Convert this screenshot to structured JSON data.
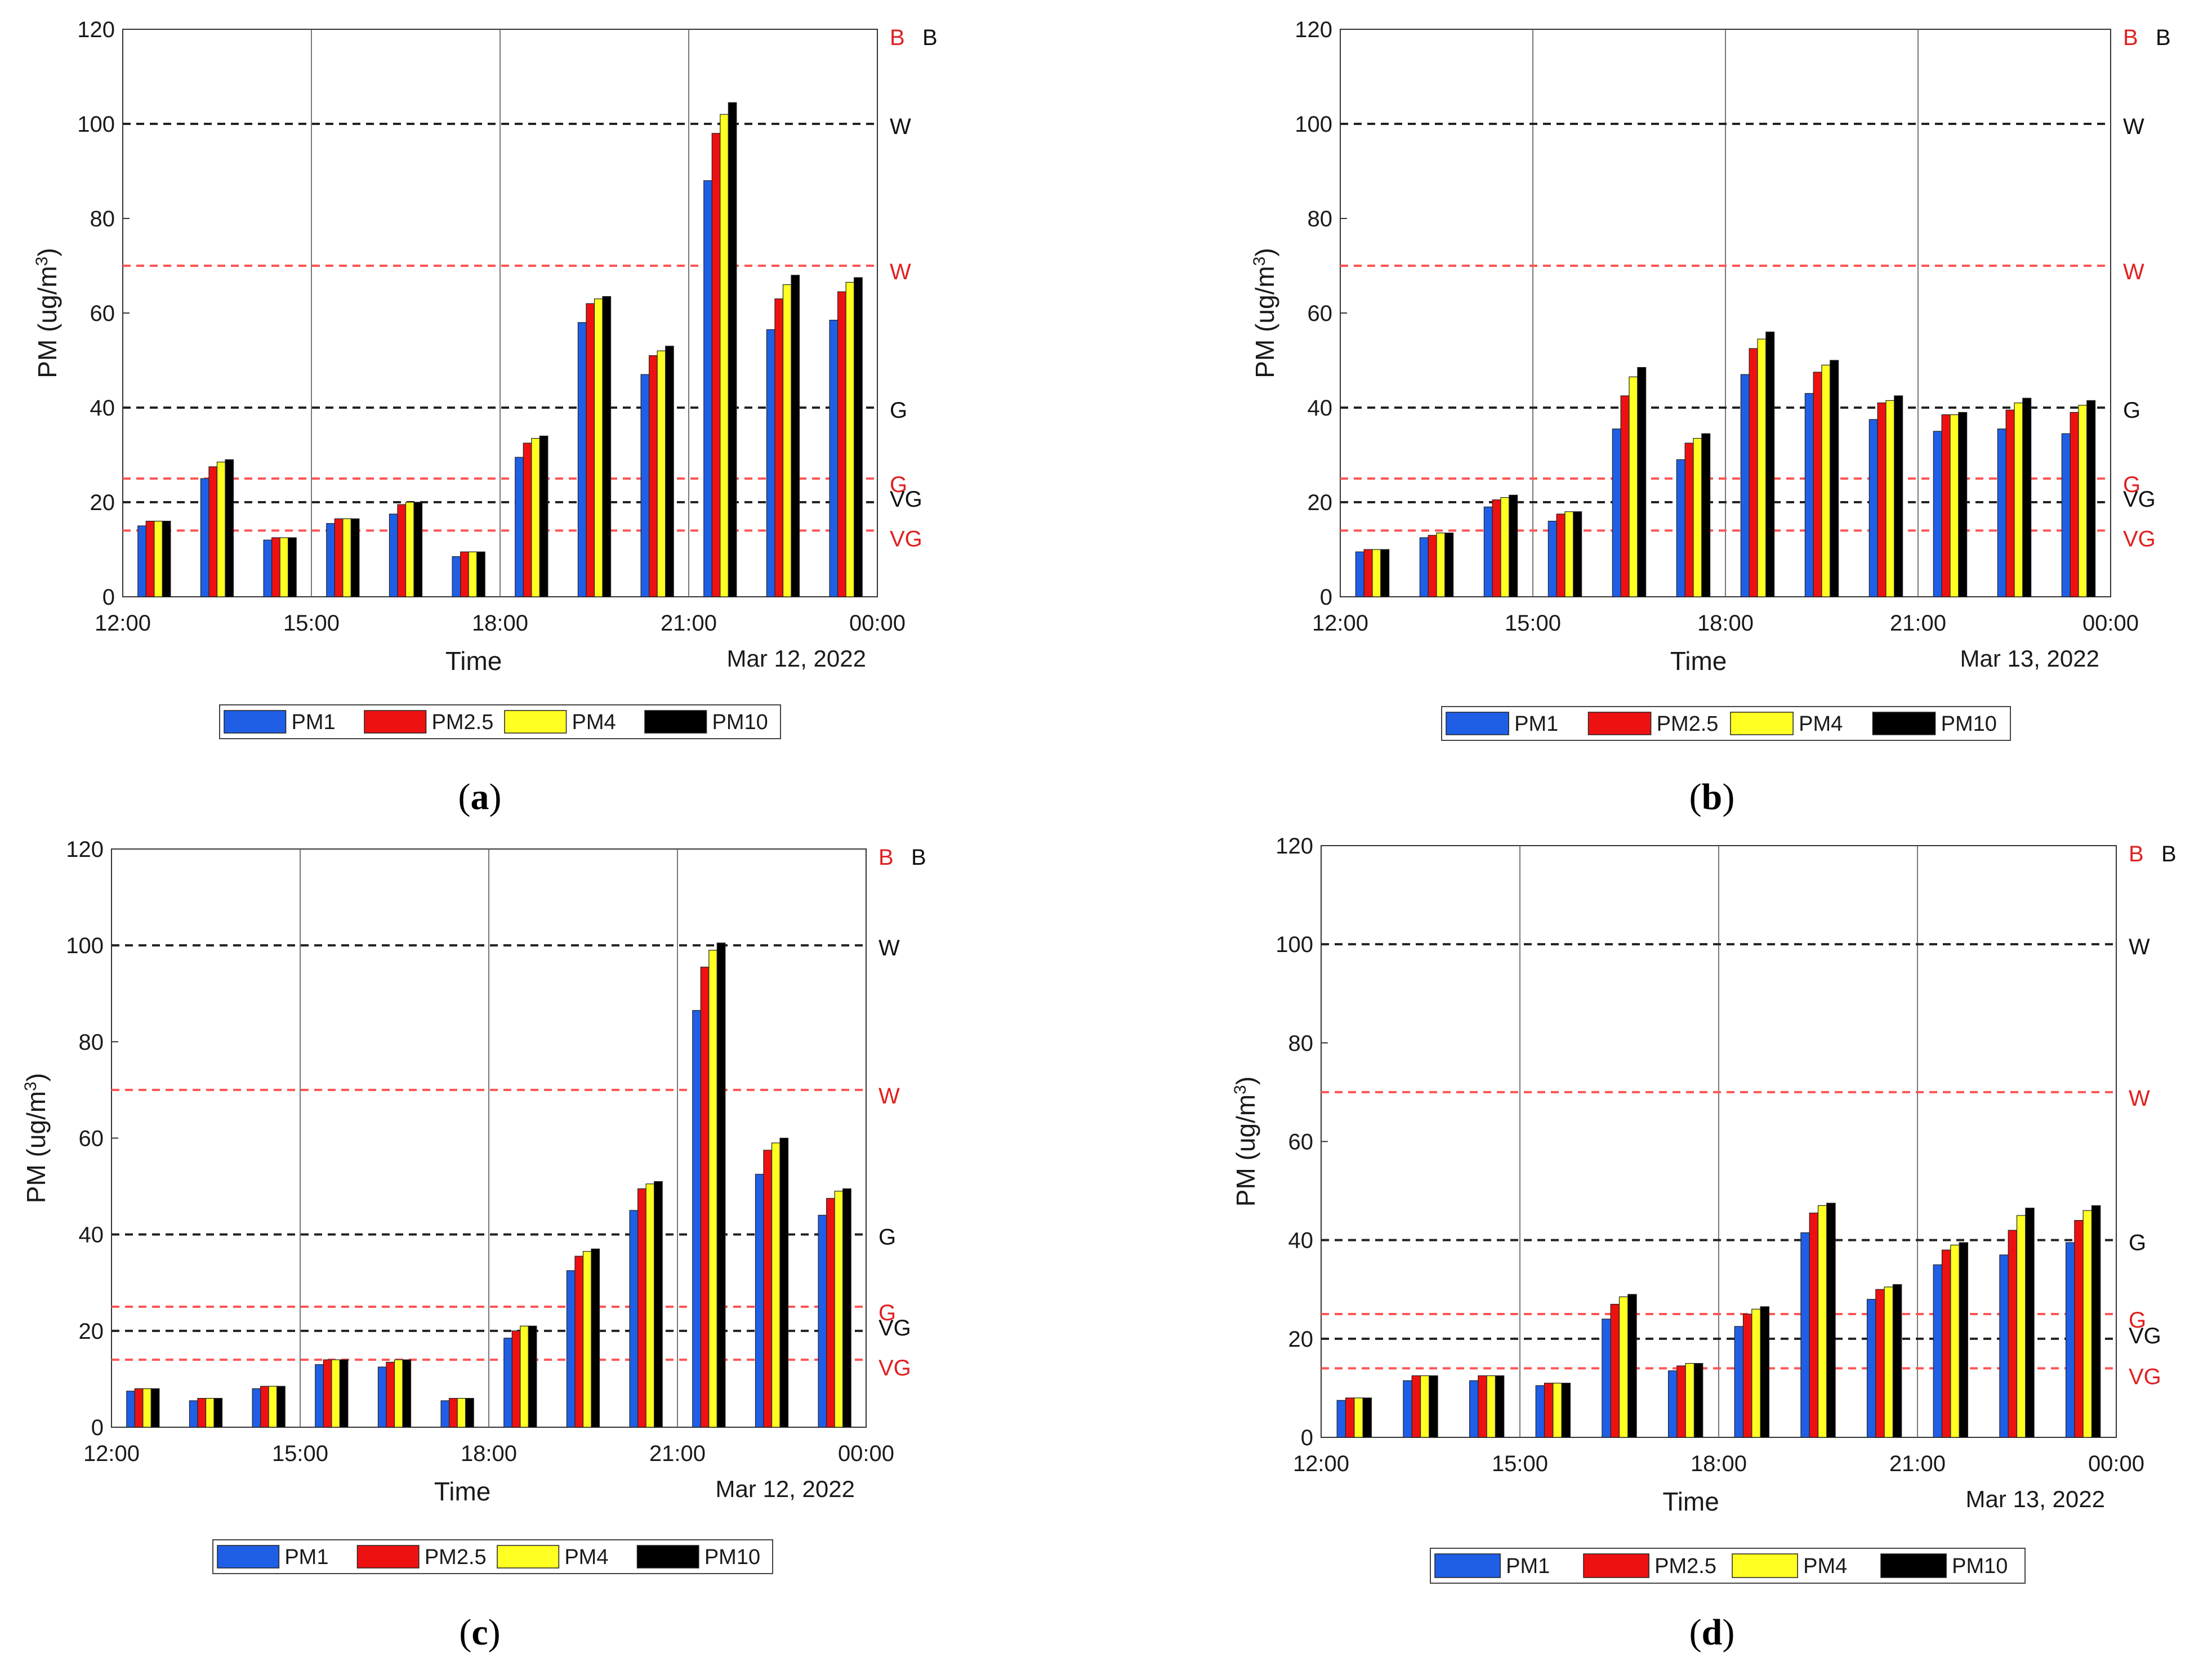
{
  "figure": {
    "captions": [
      "a",
      "b",
      "c",
      "d"
    ]
  },
  "legend_colors": {
    "PM1": "#1f5fe6",
    "PM2.5": "#ee1111",
    "PM4": "#ffff22",
    "PM10": "#000000"
  },
  "level_colors": {
    "red": "#ff5555",
    "black": "#222222"
  },
  "chart_data": [
    {
      "type": "bar",
      "panel": "a",
      "xlabel": "Time",
      "ylabel": "PM (ug/m",
      "ylabel_sup": "3",
      "ylabel_close": ")",
      "ylim": [
        0,
        120
      ],
      "yticks": [
        "0",
        "20",
        "40",
        "60",
        "80",
        "100",
        "120"
      ],
      "xticks": [
        "12:00",
        "15:00",
        "18:00",
        "21:00",
        "00:00"
      ],
      "date_label": "Mar 12, 2022",
      "legend": [
        "PM1",
        "PM2.5",
        "PM4",
        "PM10"
      ],
      "thresholds": [
        {
          "value": 100,
          "color": "black",
          "label": "W"
        },
        {
          "value": 70,
          "color": "red",
          "label": "W"
        },
        {
          "value": 40,
          "color": "black",
          "label": "G"
        },
        {
          "value": 25,
          "color": "red",
          "label": "G"
        },
        {
          "value": 20,
          "color": "black",
          "label": "VG"
        },
        {
          "value": 14,
          "color": "red",
          "label": "VG"
        }
      ],
      "top_labels": [
        {
          "color": "red",
          "label": "B"
        },
        {
          "color": "black",
          "label": "B"
        }
      ],
      "series": [
        {
          "name": "PM1",
          "values": [
            15,
            25,
            12,
            15.5,
            17.5,
            8.5,
            29.5,
            58,
            47,
            88,
            56.5,
            58.5
          ]
        },
        {
          "name": "PM2.5",
          "values": [
            16,
            27.5,
            12.5,
            16.5,
            19.5,
            9.5,
            32.5,
            62,
            51,
            98,
            63,
            64.5
          ]
        },
        {
          "name": "PM4",
          "values": [
            16,
            28.5,
            12.5,
            16.5,
            20,
            9.5,
            33.5,
            63,
            52,
            102,
            66,
            66.5
          ]
        },
        {
          "name": "PM10",
          "values": [
            16,
            29,
            12.5,
            16.5,
            20,
            9.5,
            34,
            63.5,
            53,
            104.5,
            68,
            67.5
          ]
        }
      ]
    },
    {
      "type": "bar",
      "panel": "b",
      "xlabel": "Time",
      "ylabel": "PM (ug/m",
      "ylabel_sup": "3",
      "ylabel_close": ")",
      "ylim": [
        0,
        120
      ],
      "yticks": [
        "0",
        "20",
        "40",
        "60",
        "80",
        "100",
        "120"
      ],
      "xticks": [
        "12:00",
        "15:00",
        "18:00",
        "21:00",
        "00:00"
      ],
      "date_label": "Mar 13, 2022",
      "legend": [
        "PM1",
        "PM2.5",
        "PM4",
        "PM10"
      ],
      "thresholds": [
        {
          "value": 100,
          "color": "black",
          "label": "W"
        },
        {
          "value": 70,
          "color": "red",
          "label": "W"
        },
        {
          "value": 40,
          "color": "black",
          "label": "G"
        },
        {
          "value": 25,
          "color": "red",
          "label": "G"
        },
        {
          "value": 20,
          "color": "black",
          "label": "VG"
        },
        {
          "value": 14,
          "color": "red",
          "label": "VG"
        }
      ],
      "top_labels": [
        {
          "color": "red",
          "label": "B"
        },
        {
          "color": "black",
          "label": "B"
        }
      ],
      "series": [
        {
          "name": "PM1",
          "values": [
            9.5,
            12.5,
            19,
            16,
            35.5,
            29,
            47,
            43,
            37.5,
            35,
            35.5,
            34.5
          ]
        },
        {
          "name": "PM2.5",
          "values": [
            10,
            13,
            20.5,
            17.5,
            42.5,
            32.5,
            52.5,
            47.5,
            41,
            38.5,
            39.5,
            39
          ]
        },
        {
          "name": "PM4",
          "values": [
            10,
            13.5,
            21,
            18,
            46.5,
            33.5,
            54.5,
            49,
            41.5,
            38.5,
            41,
            40.5
          ]
        },
        {
          "name": "PM10",
          "values": [
            10,
            13.5,
            21.5,
            18,
            48.5,
            34.5,
            56,
            50,
            42.5,
            39,
            42,
            41.5
          ]
        }
      ]
    },
    {
      "type": "bar",
      "panel": "c",
      "xlabel": "Time",
      "ylabel": "PM (ug/m",
      "ylabel_sup": "3",
      "ylabel_close": ")",
      "ylim": [
        0,
        120
      ],
      "yticks": [
        "0",
        "20",
        "40",
        "60",
        "80",
        "100",
        "120"
      ],
      "xticks": [
        "12:00",
        "15:00",
        "18:00",
        "21:00",
        "00:00"
      ],
      "date_label": "Mar 12, 2022",
      "legend": [
        "PM1",
        "PM2.5",
        "PM4",
        "PM10"
      ],
      "thresholds": [
        {
          "value": 100,
          "color": "black",
          "label": "W"
        },
        {
          "value": 70,
          "color": "red",
          "label": "W"
        },
        {
          "value": 40,
          "color": "black",
          "label": "G"
        },
        {
          "value": 25,
          "color": "red",
          "label": "G"
        },
        {
          "value": 20,
          "color": "black",
          "label": "VG"
        },
        {
          "value": 14,
          "color": "red",
          "label": "VG"
        }
      ],
      "top_labels": [
        {
          "color": "red",
          "label": "B"
        },
        {
          "color": "black",
          "label": "B"
        }
      ],
      "series": [
        {
          "name": "PM1",
          "values": [
            7.5,
            5.5,
            8,
            13,
            12.5,
            5.5,
            18.5,
            32.5,
            45,
            86.5,
            52.5,
            44
          ]
        },
        {
          "name": "PM2.5",
          "values": [
            8,
            6,
            8.5,
            14,
            13.5,
            6,
            20,
            35.5,
            49.5,
            95.5,
            57.5,
            47.5
          ]
        },
        {
          "name": "PM4",
          "values": [
            8,
            6,
            8.5,
            14,
            14,
            6,
            21,
            36.5,
            50.5,
            99,
            59,
            49
          ]
        },
        {
          "name": "PM10",
          "values": [
            8,
            6,
            8.5,
            14,
            14,
            6,
            21,
            37,
            51,
            100.5,
            60,
            49.5
          ]
        }
      ]
    },
    {
      "type": "bar",
      "panel": "d",
      "xlabel": "Time",
      "ylabel": "PM (ug/m",
      "ylabel_sup": "3",
      "ylabel_close": ")",
      "ylim": [
        0,
        120
      ],
      "yticks": [
        "0",
        "20",
        "40",
        "60",
        "80",
        "100",
        "120"
      ],
      "xticks": [
        "12:00",
        "15:00",
        "18:00",
        "21:00",
        "00:00"
      ],
      "date_label": "Mar 13, 2022",
      "legend": [
        "PM1",
        "PM2.5",
        "PM4",
        "PM10"
      ],
      "thresholds": [
        {
          "value": 100,
          "color": "black",
          "label": "W"
        },
        {
          "value": 70,
          "color": "red",
          "label": "W"
        },
        {
          "value": 40,
          "color": "black",
          "label": "G"
        },
        {
          "value": 25,
          "color": "red",
          "label": "G"
        },
        {
          "value": 20,
          "color": "black",
          "label": "VG"
        },
        {
          "value": 14,
          "color": "red",
          "label": "VG"
        }
      ],
      "top_labels": [
        {
          "color": "red",
          "label": "B"
        },
        {
          "color": "black",
          "label": "B"
        }
      ],
      "series": [
        {
          "name": "PM1",
          "values": [
            7.5,
            11.5,
            11.5,
            10.5,
            24,
            13.5,
            22.5,
            41.5,
            28,
            35,
            37,
            39.5
          ]
        },
        {
          "name": "PM2.5",
          "values": [
            8,
            12.5,
            12.5,
            11,
            27,
            14.5,
            25,
            45.5,
            30,
            38,
            42,
            44
          ]
        },
        {
          "name": "PM4",
          "values": [
            8,
            12.5,
            12.5,
            11,
            28.5,
            15,
            26,
            47,
            30.5,
            39,
            45,
            46
          ]
        },
        {
          "name": "PM10",
          "values": [
            8,
            12.5,
            12.5,
            11,
            29,
            15,
            26.5,
            47.5,
            31,
            39.5,
            46.5,
            47
          ]
        }
      ]
    }
  ]
}
